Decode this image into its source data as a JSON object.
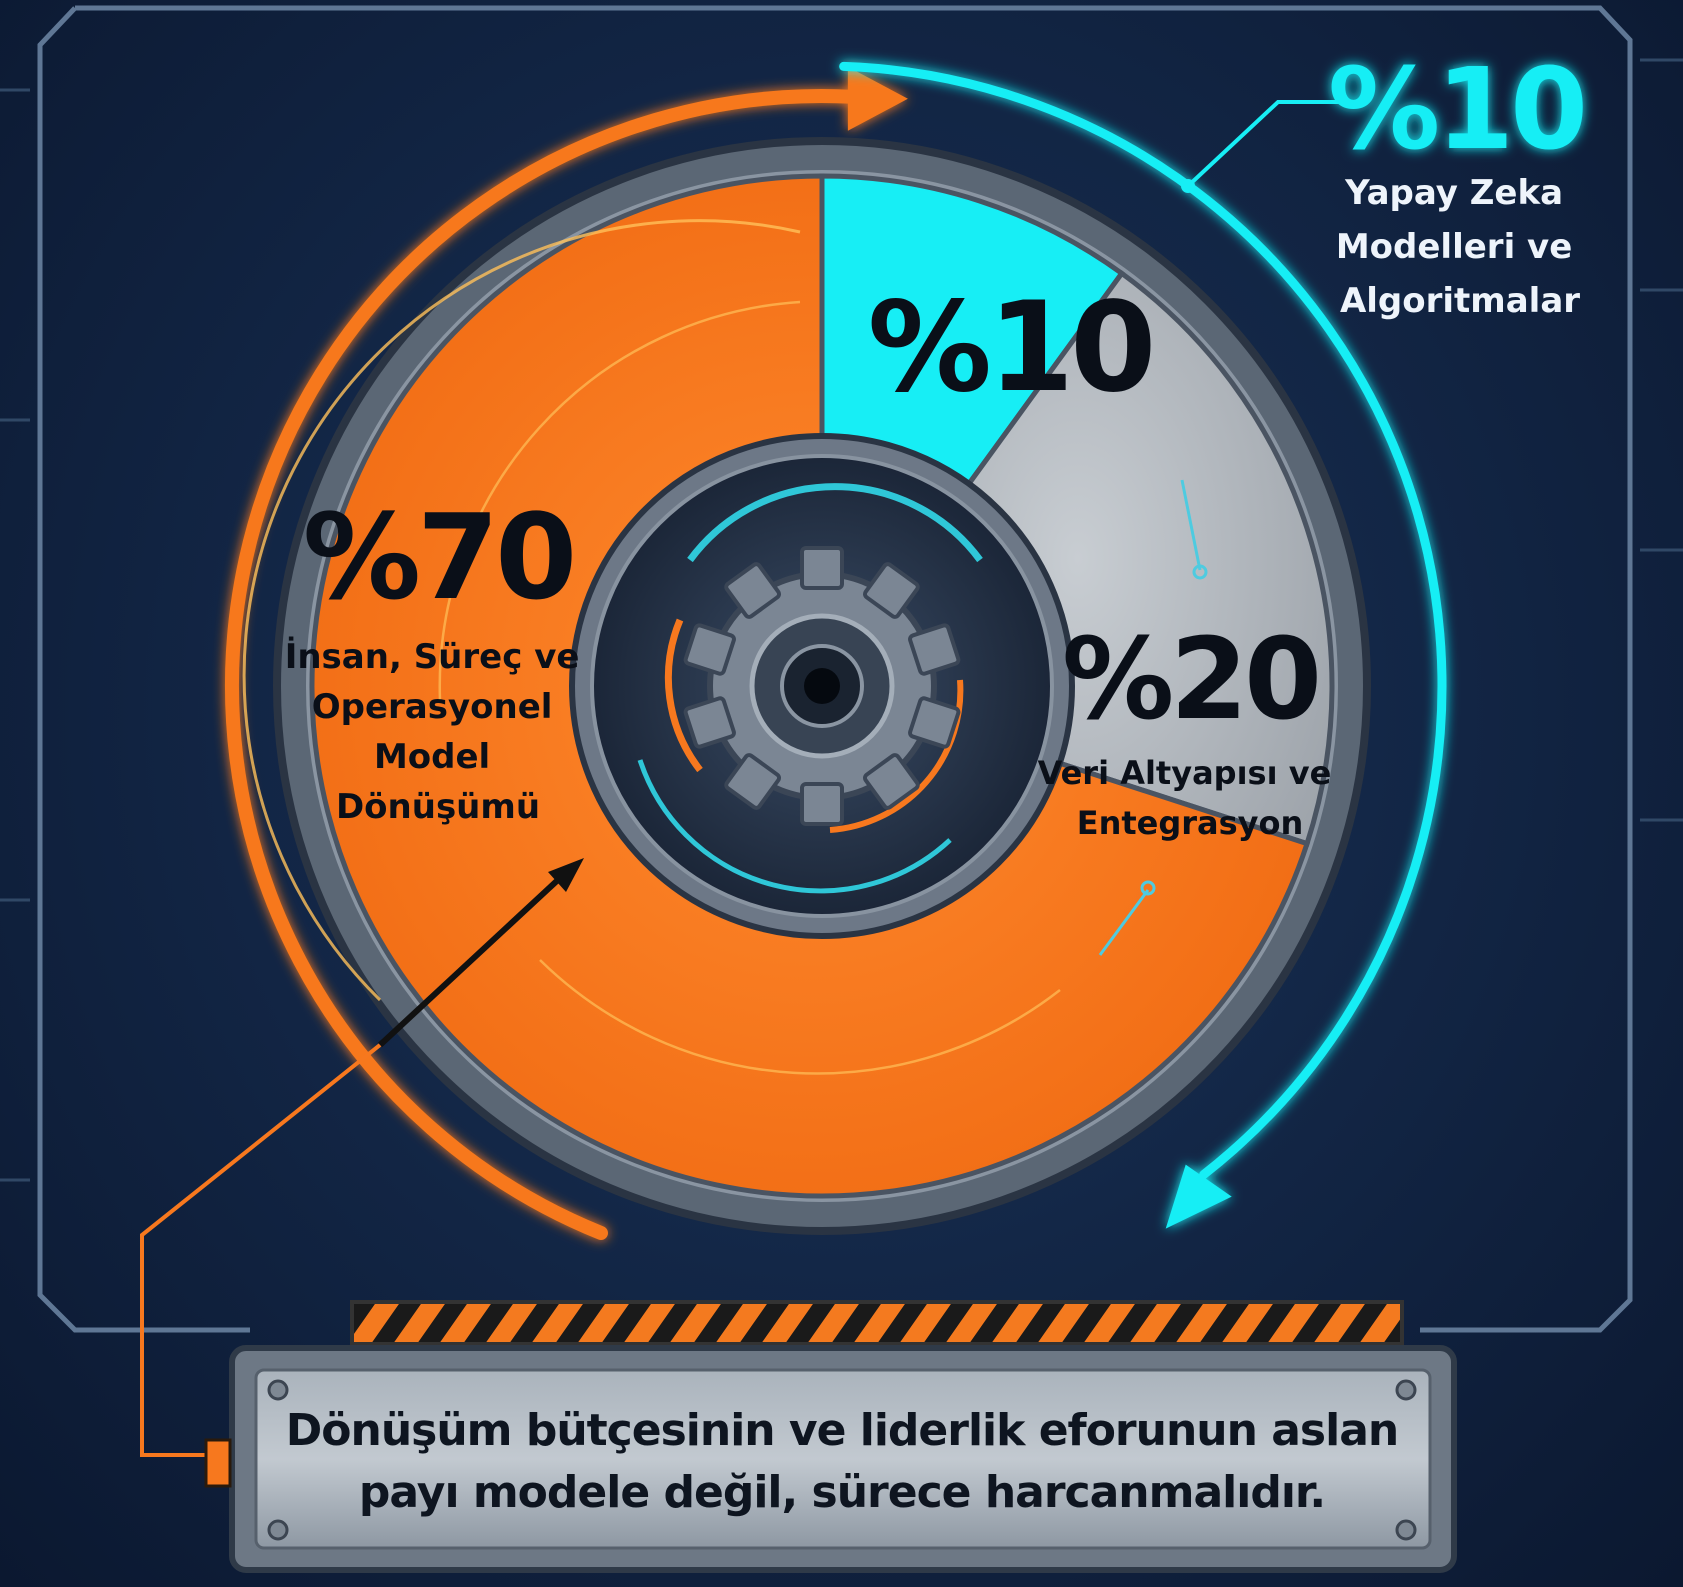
{
  "chart_data": {
    "type": "pie",
    "slices": [
      {
        "label_value": "%70",
        "label_lines": [
          "İnsan, Süreç ve",
          "Operasyonel",
          "Model",
          "Dönüşümü"
        ],
        "value": 70,
        "color": "#f7781e"
      },
      {
        "label_value": "%10",
        "label_lines": [],
        "value": 10,
        "color": "#17eef5"
      },
      {
        "label_value": "%20",
        "label_lines": [
          "Veri Altyapısı ve",
          "Entegrasyon"
        ],
        "value": 20,
        "color": "#b7bcc2"
      }
    ],
    "callout": {
      "value": "%10",
      "lines": [
        "Yapay Zeka",
        "Modelleri ve",
        "Algoritmalar"
      ]
    }
  },
  "banner": {
    "line1": "Dönüşüm bütçesinin ve liderlik eforunun aslan",
    "line2": "payı modele değil, sürece harcanmalıdır."
  },
  "colors": {
    "orange": "#f7781e",
    "cyan": "#17eef5",
    "gray": "#b7bcc2",
    "background": "#132747"
  }
}
